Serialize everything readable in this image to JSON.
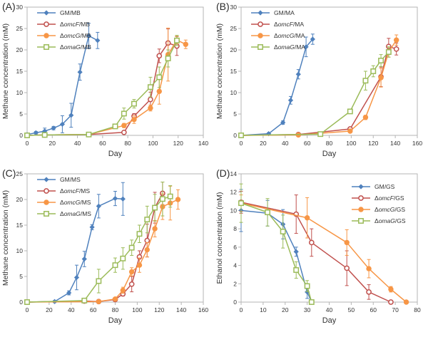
{
  "colors": {
    "blue": "#4F81BD",
    "red": "#C0504D",
    "orange": "#F79646",
    "green": "#9BBB59",
    "axis_line": "#b5b5b5",
    "tick_text": "#333333",
    "axis_title_text": "#333333"
  },
  "chart_data": [
    {
      "type": "line",
      "panel_label": "(A)",
      "xlabel": "Day",
      "ylabel": "Methane concentration (mM)",
      "xlim": [
        0,
        140
      ],
      "xtick_step": 20,
      "ylim": [
        0,
        30
      ],
      "ytick_step": 5,
      "legend_position": "top-left",
      "series": [
        {
          "name": "GM/MB",
          "name_parts": {
            "pre": "",
            "italic": "",
            "post": "GM/MB"
          },
          "color": "#4F81BD",
          "marker": "diamond-filled",
          "x": [
            0,
            7,
            14,
            21,
            28,
            35,
            42,
            49,
            56
          ],
          "y": [
            0.2,
            0.6,
            1.0,
            1.7,
            2.6,
            4.7,
            14.8,
            23.3,
            22.2
          ],
          "yerr": [
            0.2,
            0.3,
            0.7,
            0.4,
            2.0,
            2.8,
            1.9,
            2.9,
            1.9
          ]
        },
        {
          "name": "ΔomcF/MB",
          "name_parts": {
            "pre": "Δ",
            "italic": "omcF",
            "post": "/MB"
          },
          "color": "#C0504D",
          "marker": "circle-open",
          "x": [
            0,
            14,
            49,
            77,
            85,
            98,
            105,
            112,
            119
          ],
          "y": [
            0,
            0.1,
            0.2,
            0.7,
            4.5,
            8.4,
            18.6,
            21.6,
            20.9
          ],
          "yerr": [
            0,
            0,
            0,
            0.3,
            0.6,
            1.7,
            1.6,
            3.3,
            2.2
          ]
        },
        {
          "name": "ΔomcG/MB",
          "name_parts": {
            "pre": "Δ",
            "italic": "omcG",
            "post": "/MB"
          },
          "color": "#F79646",
          "marker": "circle-filled",
          "x": [
            0,
            14,
            49,
            77,
            85,
            98,
            105,
            112,
            119,
            126
          ],
          "y": [
            0,
            0.1,
            0.2,
            2.3,
            3.7,
            6.4,
            10.3,
            18.9,
            22.3,
            21.3
          ],
          "yerr": [
            0,
            0,
            0,
            0.5,
            0.9,
            0.7,
            3.0,
            6.2,
            0.9,
            1.0
          ]
        },
        {
          "name": "ΔomaG/MB",
          "name_parts": {
            "pre": "Δ",
            "italic": "omaG",
            "post": "/MB"
          },
          "color": "#9BBB59",
          "marker": "square-open",
          "x": [
            0,
            14,
            49,
            70,
            77,
            85,
            98,
            105,
            112,
            119
          ],
          "y": [
            0,
            0.1,
            0.2,
            2.1,
            5.1,
            7.4,
            11.3,
            13.6,
            18.0,
            22.2
          ],
          "yerr": [
            0,
            0,
            0,
            0.4,
            1.3,
            1.0,
            2.3,
            2.4,
            2.0,
            1.2
          ]
        }
      ]
    },
    {
      "type": "line",
      "panel_label": "(B)",
      "xlabel": "Day",
      "ylabel": "Methane concentration (mM)",
      "xlim": [
        0,
        160
      ],
      "xtick_step": 20,
      "ylim": [
        0,
        30
      ],
      "ytick_step": 5,
      "legend_position": "top-left",
      "series": [
        {
          "name": "GM/MA",
          "name_parts": {
            "pre": "",
            "italic": "",
            "post": "GM/MA"
          },
          "color": "#4F81BD",
          "marker": "diamond-filled",
          "x": [
            0,
            25,
            38,
            45,
            52,
            59,
            65
          ],
          "y": [
            0,
            0.4,
            3.0,
            8.2,
            14.3,
            20.7,
            22.5
          ],
          "yerr": [
            0,
            0.2,
            0.4,
            0.9,
            1.1,
            2.3,
            1.2
          ]
        },
        {
          "name": "ΔomcF/MA",
          "name_parts": {
            "pre": "Δ",
            "italic": "omcF",
            "post": "/MA"
          },
          "color": "#C0504D",
          "marker": "circle-open",
          "x": [
            0,
            52,
            99,
            127,
            134,
            141
          ],
          "y": [
            0,
            0.2,
            1.5,
            13.7,
            20.8,
            20.2
          ],
          "yerr": [
            0,
            0,
            0.3,
            2.3,
            1.9,
            1.4
          ]
        },
        {
          "name": "ΔomcG/MA",
          "name_parts": {
            "pre": "Δ",
            "italic": "omcG",
            "post": "/MA"
          },
          "color": "#F79646",
          "marker": "circle-filled",
          "x": [
            0,
            52,
            99,
            113,
            127,
            134,
            141
          ],
          "y": [
            0,
            0.1,
            1.0,
            4.2,
            13.5,
            19.5,
            22.3
          ],
          "yerr": [
            0,
            0,
            0.3,
            0.5,
            2.2,
            1.2,
            1.2
          ]
        },
        {
          "name": "ΔomaG/MA",
          "name_parts": {
            "pre": "Δ",
            "italic": "omaG",
            "post": "/MA"
          },
          "color": "#9BBB59",
          "marker": "square-open",
          "x": [
            0,
            72,
            99,
            113,
            120,
            127,
            134
          ],
          "y": [
            0,
            0.3,
            5.6,
            12.8,
            15.0,
            17.5,
            19.5
          ],
          "yerr": [
            0,
            0,
            0.4,
            2.2,
            1.3,
            1.4,
            1.2
          ]
        }
      ]
    },
    {
      "type": "line",
      "panel_label": "(C)",
      "xlabel": "Day",
      "ylabel": "Methane concentration (mM)",
      "xlim": [
        0,
        160
      ],
      "xtick_step": 20,
      "ylim": [
        0,
        25
      ],
      "ytick_step": 5,
      "legend_position": "top-left",
      "series": [
        {
          "name": "GM/MS",
          "name_parts": {
            "pre": "",
            "italic": "",
            "post": "GM/MS"
          },
          "color": "#4F81BD",
          "marker": "diamond-filled",
          "x": [
            0,
            25,
            38,
            45,
            52,
            59,
            65,
            80,
            87
          ],
          "y": [
            0,
            0.1,
            1.8,
            4.8,
            8.4,
            14.6,
            18.7,
            20.2,
            20.1
          ],
          "yerr": [
            0,
            0.2,
            0.4,
            2.4,
            1.5,
            0.5,
            2.3,
            1.4,
            3.2
          ]
        },
        {
          "name": "ΔomcF/MS",
          "name_parts": {
            "pre": "Δ",
            "italic": "omcF",
            "post": "/MS"
          },
          "color": "#C0504D",
          "marker": "circle-open",
          "x": [
            0,
            52,
            65,
            80,
            87,
            95,
            102,
            109,
            116,
            123
          ],
          "y": [
            0,
            0.2,
            0.1,
            0.5,
            1.6,
            3.5,
            8.8,
            12.0,
            18.4,
            21.2
          ],
          "yerr": [
            0,
            0,
            0,
            0.2,
            0.4,
            1.5,
            1.2,
            3.2,
            3.0,
            2.2
          ]
        },
        {
          "name": "ΔomcG/MS",
          "name_parts": {
            "pre": "Δ",
            "italic": "omcG",
            "post": "/MS"
          },
          "color": "#F79646",
          "marker": "circle-filled",
          "x": [
            0,
            65,
            80,
            87,
            95,
            102,
            109,
            116,
            123,
            130,
            137
          ],
          "y": [
            0,
            0.1,
            0.6,
            2.3,
            5.9,
            7.2,
            10.2,
            14.3,
            18.6,
            19.3,
            20.0
          ],
          "yerr": [
            0,
            0,
            0.2,
            0.6,
            0.8,
            1.4,
            1.4,
            1.6,
            2.5,
            3.3,
            1.9
          ]
        },
        {
          "name": "ΔomaG/MS",
          "name_parts": {
            "pre": "Δ",
            "italic": "omaG",
            "post": "/MS"
          },
          "color": "#9BBB59",
          "marker": "square-open",
          "x": [
            0,
            52,
            65,
            80,
            87,
            95,
            102,
            109,
            116,
            123,
            130
          ],
          "y": [
            0,
            0.3,
            4.1,
            7.2,
            8.5,
            10.6,
            13.3,
            16.1,
            18.4,
            20.1,
            20.6
          ],
          "yerr": [
            0,
            0,
            2.3,
            1.4,
            2.1,
            1.5,
            1.7,
            2.6,
            2.6,
            3.3,
            2.1
          ]
        }
      ]
    },
    {
      "type": "line",
      "panel_label": "(D)",
      "xlabel": "Day",
      "ylabel": "Ethanol concentration (mM)",
      "xlim": [
        0,
        80
      ],
      "xtick_step": 10,
      "ylim": [
        0,
        14
      ],
      "ytick_step": 2,
      "legend_position": "top-right",
      "series": [
        {
          "name": "GM/GS",
          "name_parts": {
            "pre": "",
            "italic": "",
            "post": "GM/GS"
          },
          "color": "#4F81BD",
          "marker": "diamond-filled",
          "x": [
            0,
            12,
            19,
            25,
            30,
            32
          ],
          "y": [
            10.0,
            9.7,
            8.5,
            5.5,
            1.1,
            0
          ],
          "yerr": [
            2.3,
            1.4,
            1.6,
            0.5,
            0.7,
            0
          ]
        },
        {
          "name": "ΔomcF/GS",
          "name_parts": {
            "pre": "Δ",
            "italic": "omcF",
            "post": "/GS"
          },
          "color": "#C0504D",
          "marker": "circle-open",
          "x": [
            0,
            25,
            32,
            48,
            58,
            68
          ],
          "y": [
            10.9,
            9.6,
            6.5,
            3.7,
            1.1,
            0
          ],
          "yerr": [
            1.2,
            2.1,
            1.5,
            1.9,
            0.8,
            0
          ]
        },
        {
          "name": "ΔomcG/GS",
          "name_parts": {
            "pre": "Δ",
            "italic": "omcG",
            "post": "/GS"
          },
          "color": "#F79646",
          "marker": "circle-filled",
          "x": [
            0,
            30,
            48,
            58,
            68,
            75
          ],
          "y": [
            10.8,
            9.2,
            6.5,
            3.65,
            1.4,
            0
          ],
          "yerr": [
            0.9,
            2.2,
            1.4,
            1.0,
            0.3,
            0
          ]
        },
        {
          "name": "ΔomaG/GS",
          "name_parts": {
            "pre": "Δ",
            "italic": "omaG",
            "post": "/GS"
          },
          "color": "#9BBB59",
          "marker": "square-open",
          "x": [
            0,
            12,
            19,
            25,
            30,
            32
          ],
          "y": [
            10.8,
            9.8,
            7.7,
            3.5,
            1.75,
            0
          ],
          "yerr": [
            2.1,
            1.5,
            1.8,
            0.9,
            0.6,
            0
          ]
        }
      ]
    }
  ]
}
